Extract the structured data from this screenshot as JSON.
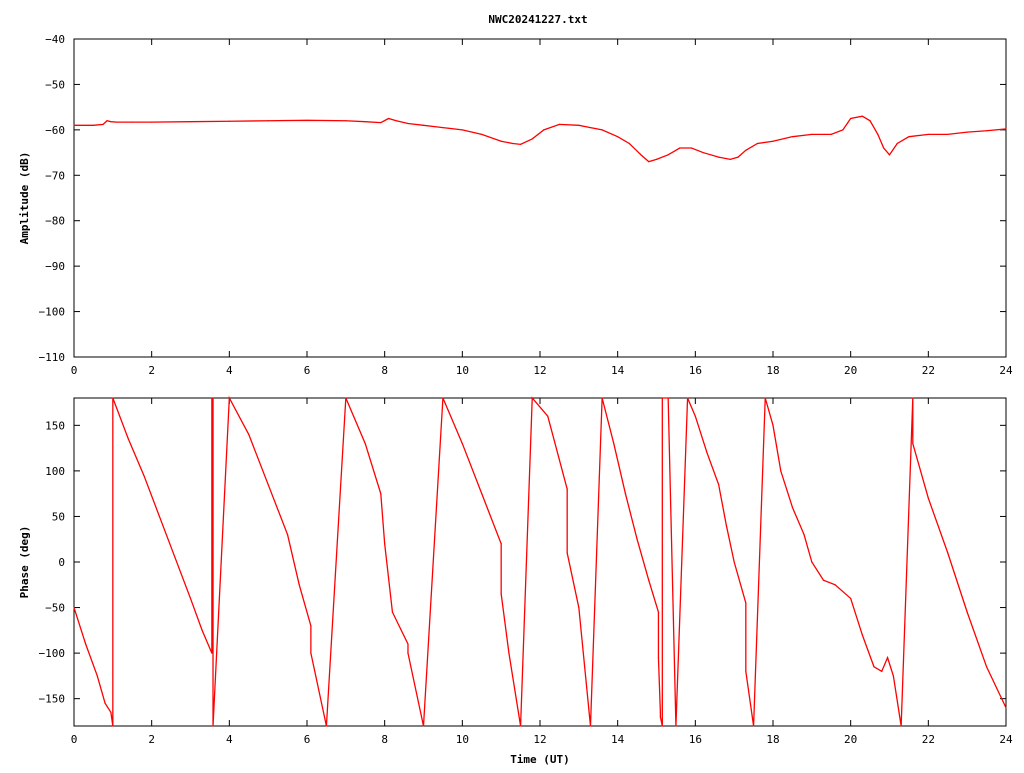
{
  "page": {
    "title": "NWC20241227.txt"
  },
  "colors": {
    "trace": "#ff0000",
    "axes": "#000000",
    "background": "#ffffff"
  },
  "chart_data": [
    {
      "id": "amplitude",
      "type": "line",
      "title": "NWC20241227.txt",
      "xlabel": "",
      "ylabel": "Amplitude (dB)",
      "xlim": [
        0,
        24
      ],
      "ylim": [
        -110,
        -40
      ],
      "xticks": [
        0,
        2,
        4,
        6,
        8,
        10,
        12,
        14,
        16,
        18,
        20,
        22,
        24
      ],
      "yticks": [
        -110,
        -100,
        -90,
        -80,
        -70,
        -60,
        -50,
        -40
      ],
      "grid": false,
      "legend": "none",
      "series": [
        {
          "color": "#ff0000",
          "x": [
            0,
            0.5,
            0.75,
            0.85,
            0.95,
            1.1,
            1.5,
            2,
            3,
            4,
            5,
            6,
            7,
            7.5,
            7.9,
            8.1,
            8.3,
            8.6,
            9,
            9.5,
            10,
            10.5,
            11,
            11.3,
            11.5,
            11.8,
            12.1,
            12.5,
            13,
            13.3,
            13.6,
            14,
            14.3,
            14.6,
            14.8,
            15,
            15.3,
            15.6,
            15.9,
            16.2,
            16.6,
            16.9,
            17.1,
            17.3,
            17.6,
            18,
            18.5,
            19,
            19.5,
            19.8,
            20,
            20.3,
            20.5,
            20.7,
            20.85,
            21,
            21.2,
            21.5,
            22,
            22.5,
            23,
            23.5,
            24
          ],
          "y": [
            -59,
            -59,
            -58.8,
            -58,
            -58.2,
            -58.3,
            -58.3,
            -58.3,
            -58.2,
            -58.1,
            -58,
            -57.9,
            -58,
            -58.2,
            -58.4,
            -57.5,
            -58,
            -58.6,
            -59,
            -59.5,
            -60,
            -61,
            -62.5,
            -63,
            -63.2,
            -62,
            -60,
            -58.8,
            -59,
            -59.5,
            -60,
            -61.5,
            -63,
            -65.5,
            -67,
            -66.5,
            -65.5,
            -64,
            -64,
            -65,
            -66,
            -66.5,
            -66,
            -64.5,
            -63,
            -62.5,
            -61.5,
            -61,
            -61,
            -60,
            -57.5,
            -57,
            -58,
            -61,
            -64,
            -65.5,
            -63,
            -61.5,
            -61,
            -61,
            -60.5,
            -60.2,
            -59.8
          ]
        }
      ]
    },
    {
      "id": "phase",
      "type": "line",
      "title": "",
      "xlabel": "Time (UT)",
      "ylabel": "Phase (deg)",
      "xlim": [
        0,
        24
      ],
      "ylim": [
        -180,
        180
      ],
      "xticks": [
        0,
        2,
        4,
        6,
        8,
        10,
        12,
        14,
        16,
        18,
        20,
        22,
        24
      ],
      "yticks": [
        -150,
        -100,
        -50,
        0,
        50,
        100,
        150
      ],
      "grid": false,
      "legend": "none",
      "series": [
        {
          "color": "#ff0000",
          "x": [
            0,
            0.3,
            0.6,
            0.8,
            0.95,
            1.0,
            1.0,
            1.4,
            1.8,
            2.2,
            2.6,
            3.0,
            3.3,
            3.55,
            3.55,
            3.58,
            3.58,
            4.0,
            4.5,
            5.0,
            5.5,
            5.8,
            6.1,
            6.1,
            6.5,
            7.0,
            7.5,
            7.9,
            8.0,
            8.2,
            8.6,
            8.6,
            9.0,
            9.5,
            10.0,
            10.5,
            11.0,
            11.0,
            11.2,
            11.5,
            11.8,
            12.2,
            12.7,
            12.7,
            13.0,
            13.3,
            13.6,
            13.9,
            14.2,
            14.5,
            14.8,
            15.05,
            15.05,
            15.1,
            15.1,
            15.15,
            15.15,
            15.3,
            15.5,
            15.8,
            16.0,
            16.3,
            16.6,
            16.8,
            17.0,
            17.3,
            17.3,
            17.5,
            17.8,
            18.0,
            18.2,
            18.5,
            18.8,
            19.0,
            19.3,
            19.6,
            20.0,
            20.3,
            20.6,
            20.8,
            20.95,
            21.1,
            21.3,
            21.6,
            21.6,
            22.0,
            22.5,
            23.0,
            23.5,
            24.0
          ],
          "y": [
            -50,
            -90,
            -125,
            -155,
            -165,
            -180,
            180,
            135,
            95,
            50,
            5,
            -40,
            -75,
            -100,
            180,
            180,
            -180,
            180,
            140,
            85,
            30,
            -25,
            -70,
            -100,
            -180,
            180,
            130,
            75,
            20,
            -55,
            -90,
            -100,
            -180,
            180,
            130,
            75,
            20,
            -35,
            -100,
            -180,
            180,
            160,
            80,
            10,
            -50,
            -180,
            180,
            130,
            75,
            25,
            -20,
            -55,
            -105,
            -165,
            -170,
            -180,
            180,
            180,
            -180,
            180,
            160,
            120,
            85,
            40,
            0,
            -45,
            -120,
            -180,
            180,
            150,
            100,
            60,
            30,
            0,
            -20,
            -25,
            -40,
            -80,
            -115,
            -120,
            -105,
            -125,
            -180,
            180,
            130,
            70,
            10,
            -55,
            -115,
            -160
          ]
        }
      ]
    }
  ]
}
